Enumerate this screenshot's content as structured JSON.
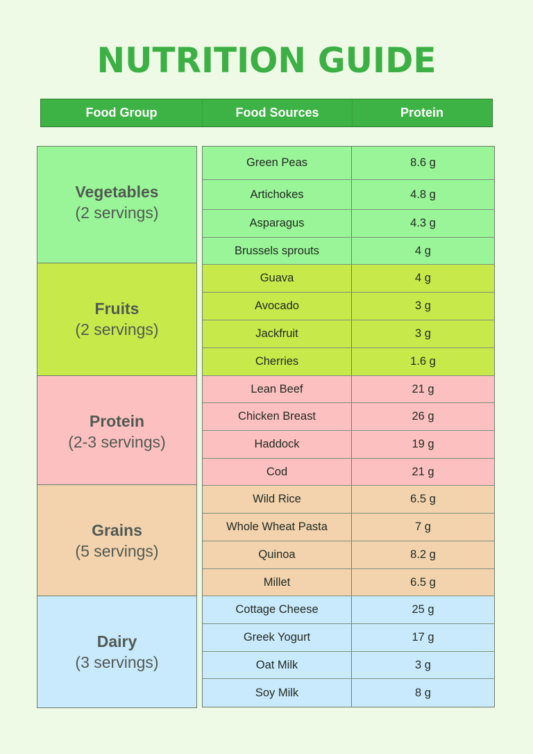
{
  "title": "NUTRITION GUIDE",
  "header": {
    "columns": [
      "Food Group",
      "Food Sources",
      "Protein"
    ],
    "color": "#3db245"
  },
  "groups": [
    {
      "name": "Vegetables",
      "servings": "(2 servings)",
      "color": "#99f598",
      "items": [
        {
          "food": "Green Peas",
          "protein": "8.6 g"
        },
        {
          "food": "Artichokes",
          "protein": "4.8 g"
        },
        {
          "food": "Asparagus",
          "protein": "4.3 g"
        },
        {
          "food": "Brussels sprouts",
          "protein": "4 g"
        }
      ]
    },
    {
      "name": "Fruits",
      "servings": "(2 servings)",
      "color": "#c8e94a",
      "items": [
        {
          "food": "Guava",
          "protein": "4 g"
        },
        {
          "food": "Avocado",
          "protein": "3 g"
        },
        {
          "food": "Jackfruit",
          "protein": "3 g"
        },
        {
          "food": "Cherries",
          "protein": "1.6 g"
        }
      ]
    },
    {
      "name": "Protein",
      "servings": "(2-3 servings)",
      "color": "#fcc0c0",
      "items": [
        {
          "food": "Lean Beef",
          "protein": "21 g"
        },
        {
          "food": "Chicken Breast",
          "protein": "26 g"
        },
        {
          "food": "Haddock",
          "protein": "19 g"
        },
        {
          "food": "Cod",
          "protein": "21 g"
        }
      ]
    },
    {
      "name": "Grains",
      "servings": "(5 servings)",
      "color": "#f2d3ad",
      "items": [
        {
          "food": "Wild Rice",
          "protein": "6.5 g"
        },
        {
          "food": "Whole Wheat Pasta",
          "protein": "7 g"
        },
        {
          "food": "Quinoa",
          "protein": "8.2 g"
        },
        {
          "food": "Millet",
          "protein": "6.5 g"
        }
      ]
    },
    {
      "name": "Dairy",
      "servings": "(3 servings)",
      "color": "#c9eafc",
      "items": [
        {
          "food": "Cottage Cheese",
          "protein": "25 g"
        },
        {
          "food": "Greek Yogurt",
          "protein": "17 g"
        },
        {
          "food": "Oat Milk",
          "protein": "3 g"
        },
        {
          "food": "Soy Milk",
          "protein": "8 g"
        }
      ]
    }
  ]
}
